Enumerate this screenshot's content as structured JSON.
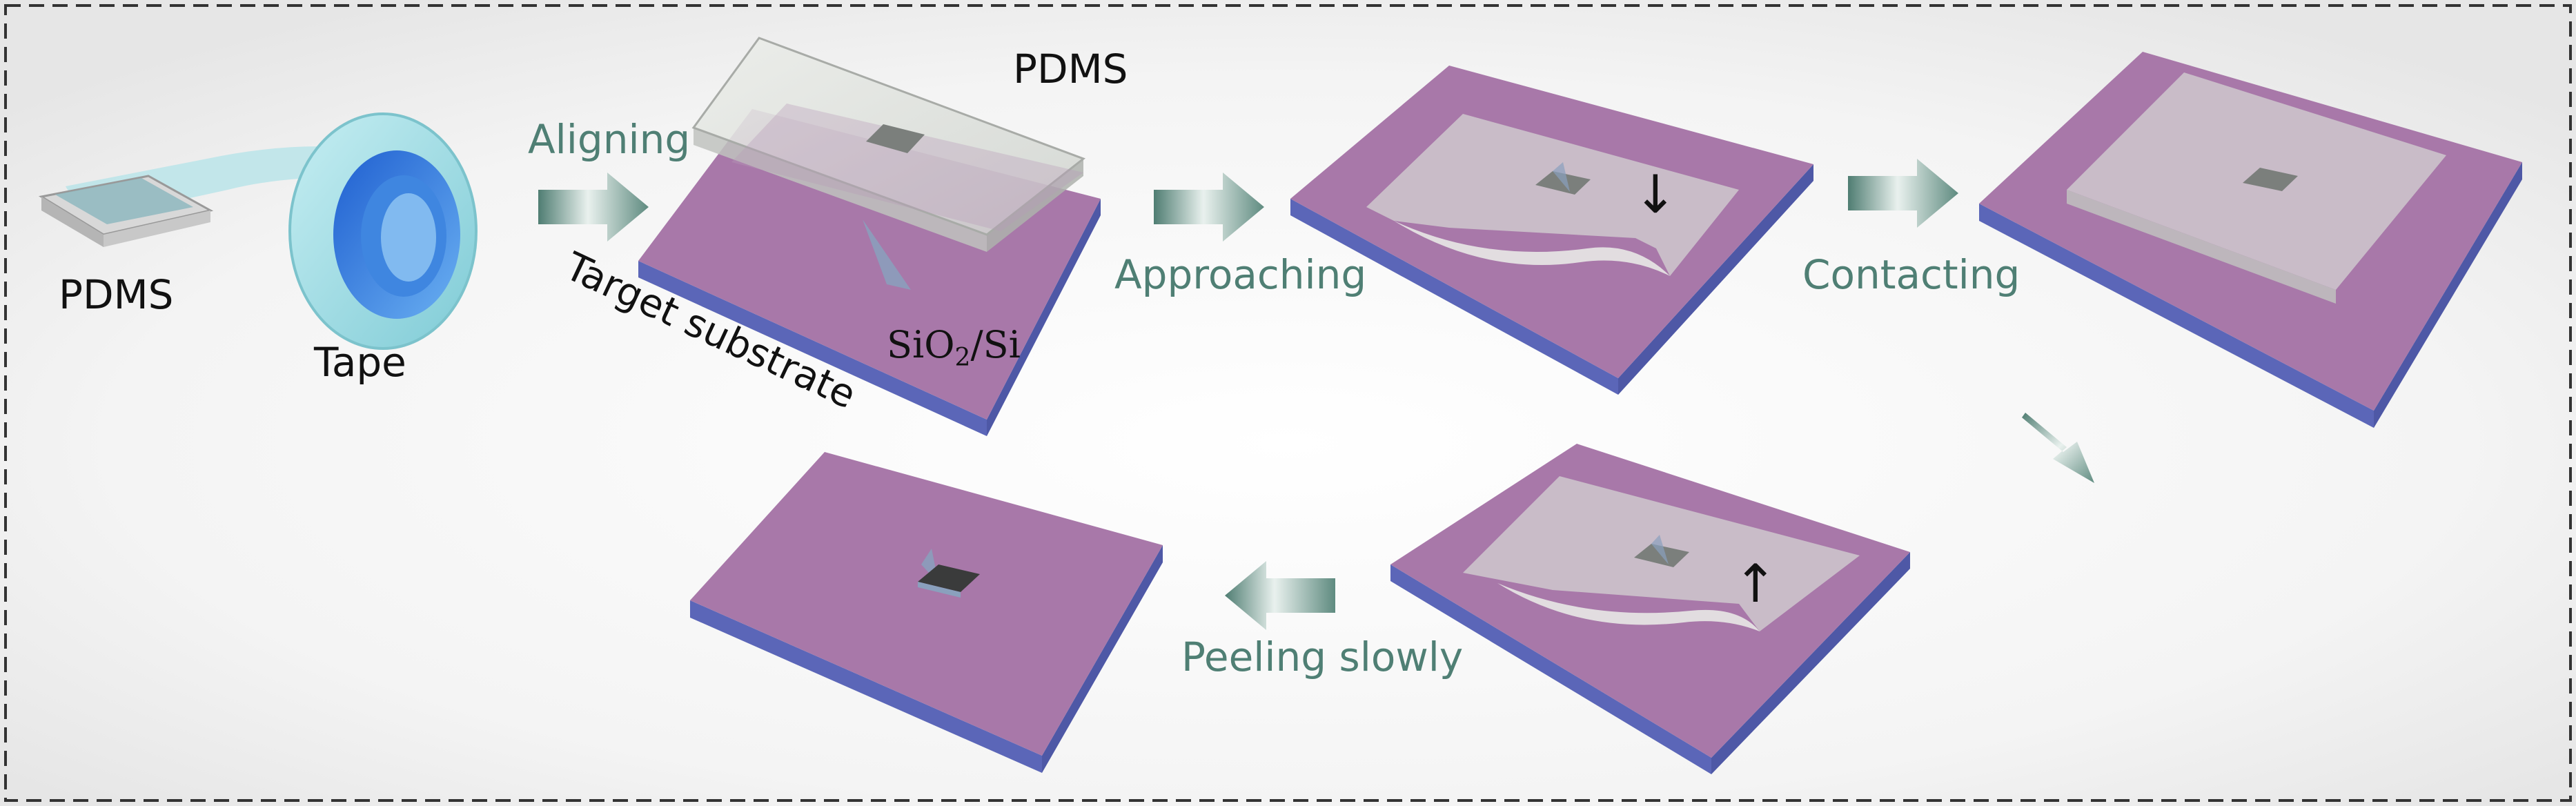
{
  "labels": {
    "pdms_tape": "PDMS",
    "tape": "Tape",
    "pdms_stamp": "PDMS",
    "target_substrate": "Target substrate",
    "sio2_si_prefix": "SiO",
    "sio2_si_sub": "2",
    "sio2_si_suffix": "/Si"
  },
  "steps": {
    "aligning": "Aligning",
    "approaching": "Approaching",
    "contacting": "Contacting",
    "peeling": "Peeling slowly"
  },
  "colors": {
    "substrate_top": "#a878a9",
    "substrate_side": "#5b66b8",
    "arrow": "#5f8b80",
    "step_text": "#4f7f74",
    "pdms": "#d9dbd8",
    "tape": "#8fd6df",
    "flake": "#6e726f"
  },
  "icons": {
    "down_arrow": "↓",
    "up_arrow": "↑"
  }
}
